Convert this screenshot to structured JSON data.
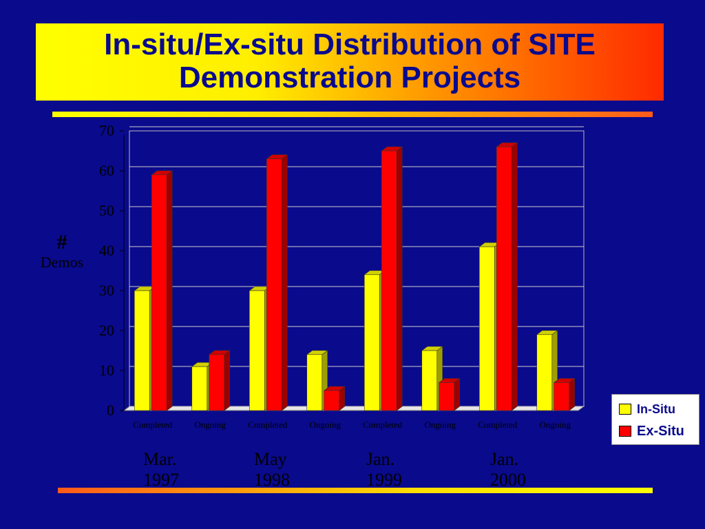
{
  "title": {
    "line1": "In-situ/Ex-situ Distribution of SITE",
    "line2": "Demonstration Projects"
  },
  "colors": {
    "background": "#0a0a8c",
    "in_situ": "#ffff00",
    "ex_situ": "#ff0000"
  },
  "ylabel": {
    "line1": "#",
    "line2": "Demos"
  },
  "periods": [
    {
      "line1": "Mar.",
      "line2": "1997"
    },
    {
      "line1": "May",
      "line2": "1998"
    },
    {
      "line1": "Jan.",
      "line2": "1999"
    },
    {
      "line1": "Jan.",
      "line2": "2000"
    }
  ],
  "chart_data": {
    "type": "bar",
    "categories": [
      "Completed",
      "Ongoing",
      "Completed",
      "Ongoing",
      "Completed",
      "Ongoing",
      "Completed",
      "Ongoing"
    ],
    "series": [
      {
        "name": "In-Situ",
        "values": [
          30,
          11,
          30,
          14,
          34,
          15,
          41,
          19
        ]
      },
      {
        "name": "Ex-Situ",
        "values": [
          59,
          14,
          63,
          5,
          65,
          7,
          66,
          7
        ]
      }
    ],
    "ylim": [
      0,
      70
    ],
    "yticks": [
      0,
      10,
      20,
      30,
      40,
      50,
      60,
      70
    ],
    "grid": true,
    "legend_position": "right",
    "bar_style": "3d"
  }
}
